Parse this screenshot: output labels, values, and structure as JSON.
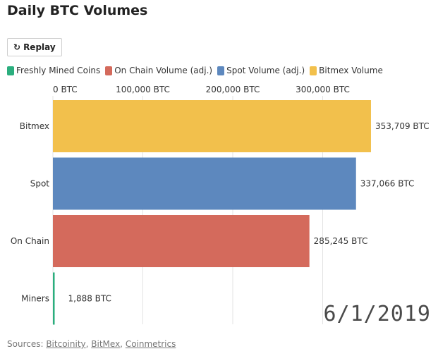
{
  "title": "Daily BTC Volumes",
  "replay": {
    "label": "Replay",
    "icon": "replay-icon"
  },
  "legend": [
    {
      "label": "Freshly Mined Coins",
      "color": "#2bae7e"
    },
    {
      "label": "On Chain Volume (adj.)",
      "color": "#d46a5c"
    },
    {
      "label": "Spot Volume (adj.)",
      "color": "#5d88be"
    },
    {
      "label": "Bitmex Volume",
      "color": "#f2c04c"
    }
  ],
  "date_stamp": "6/1/2019",
  "sources": {
    "prefix": "Sources: ",
    "links": [
      "Bitcoinity",
      "BitMex",
      "Coinmetrics"
    ]
  },
  "chart_data": {
    "type": "bar",
    "orientation": "horizontal",
    "categories": [
      "Bitmex",
      "Spot",
      "On Chain",
      "Miners"
    ],
    "values": [
      353709,
      337066,
      285245,
      1888
    ],
    "value_labels": [
      "353,709 BTC",
      "337,066 BTC",
      "285,245 BTC",
      "1,888 BTC"
    ],
    "colors": [
      "#f2c04c",
      "#5d88be",
      "#d46a5c",
      "#2bae7e"
    ],
    "x_ticks": [
      0,
      100000,
      200000,
      300000
    ],
    "x_tick_labels": [
      "0 BTC",
      "100,000 BTC",
      "200,000 BTC",
      "300,000 BTC"
    ],
    "xlim": [
      0,
      353709
    ],
    "grid": true
  }
}
